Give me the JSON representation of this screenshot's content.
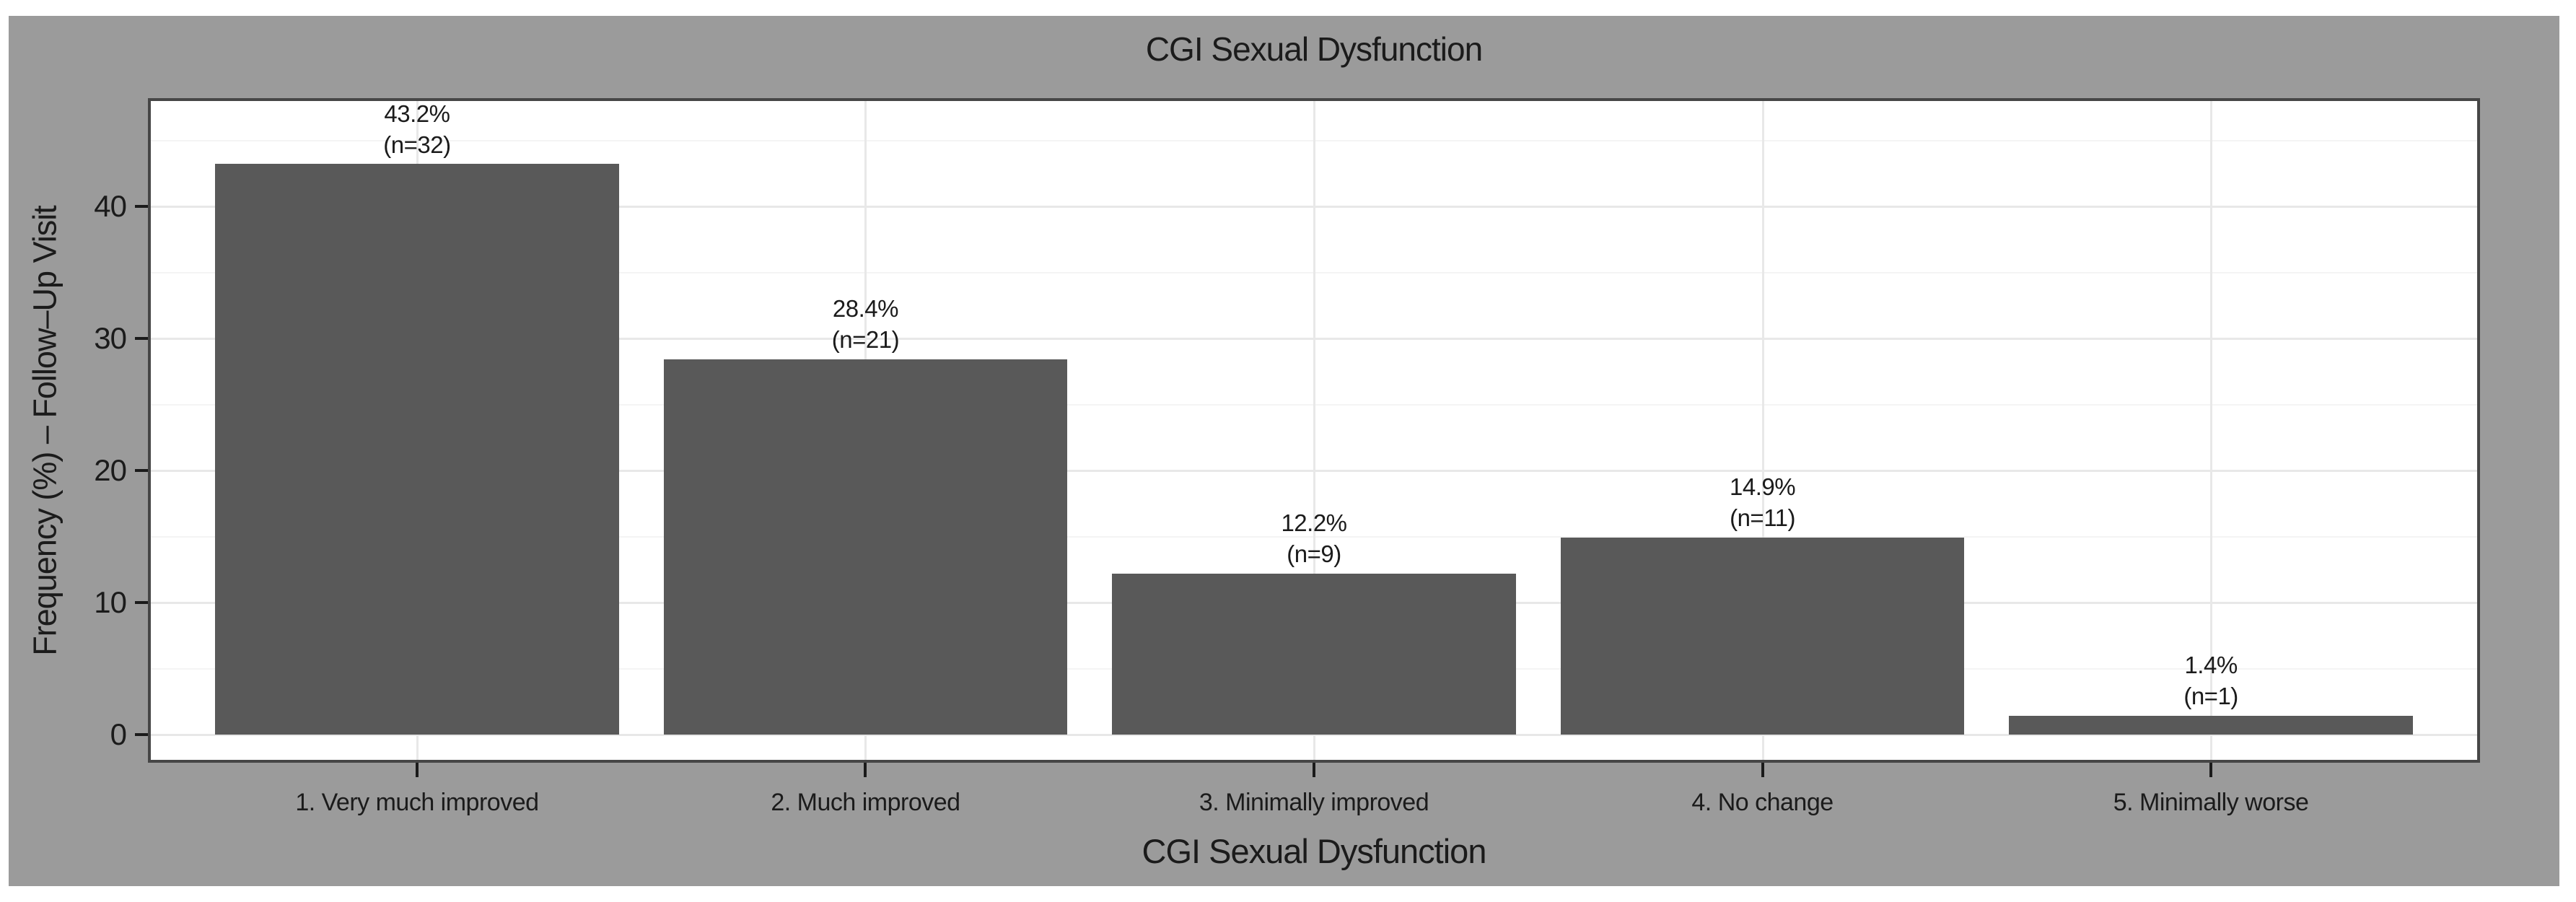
{
  "page": {
    "background": "#ffffff"
  },
  "chart": {
    "outer_background": "#9b9b9b",
    "plot_background": "#ffffff",
    "bar_color": "#595959",
    "panel_border_color": "#464646",
    "grid_major_color": "#e8e8e8",
    "grid_minor_color": "#f4f4f4",
    "text_color": "#1b1b1b",
    "tick_mark_color": "#1b1b1b"
  },
  "chart_data": {
    "type": "bar",
    "title": "CGI Sexual Dysfunction",
    "xlabel": "CGI Sexual Dysfunction",
    "ylabel": "Frequency (%) – Follow–Up Visit",
    "categories": [
      "1. Very much improved",
      "2. Much improved",
      "3. Minimally improved",
      "4. No change",
      "5. Minimally worse"
    ],
    "values": [
      43.2,
      28.4,
      12.2,
      14.9,
      1.4
    ],
    "counts": [
      32,
      21,
      9,
      11,
      1
    ],
    "value_labels": [
      "43.2%",
      "28.4%",
      "12.2%",
      "14.9%",
      "1.4%"
    ],
    "count_labels": [
      "(n=32)",
      "(n=21)",
      "(n=9)",
      "(n=11)",
      "(n=1)"
    ],
    "yticks": [
      0,
      10,
      20,
      30,
      40
    ],
    "yticks_minor": [
      5,
      15,
      25,
      35,
      45
    ],
    "ylim": [
      0,
      48.2
    ],
    "bar_width_fraction": 0.9,
    "grid": true,
    "legend": false
  }
}
